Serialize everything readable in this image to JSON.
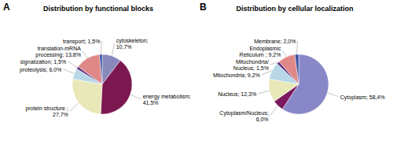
{
  "chart_data": [
    {
      "type": "pie",
      "title": "Distribution by functional blocks",
      "annotations": [
        "A"
      ],
      "categories": [
        "cytoskeleton;\n10,7%",
        "energy metabolism;\n41,5%",
        "protein structure ;\n27,7%",
        "proteolysis; 6,0%",
        "signalization; 1,5%",
        "translation-mRNA\nprocessing; 13,8%",
        "transport; 1,5%"
      ],
      "values": [
        10.7,
        41.5,
        27.7,
        6.0,
        1.5,
        13.8,
        1.5
      ],
      "colors": [
        "#8888bb",
        "#7b1850",
        "#e8e8b8",
        "#b8d8e8",
        "#5c3080",
        "#e08888",
        "#3850a0"
      ]
    },
    {
      "type": "pie",
      "title": "Distribution by cellular localization",
      "annotations": [
        "B"
      ],
      "categories": [
        "Cytoplasm; 58,4%",
        "Cytoplasm/Nucleus;\n6,0%",
        "Nucleus; 12,3%",
        "Mitochondria; 9,2%",
        "Mitochondria/\nNucleus; 1,5%",
        "Endoplasmic\nReticulum ; 9,2%",
        "Membrane; 2,0%"
      ],
      "values": [
        58.4,
        6.0,
        12.3,
        9.2,
        1.5,
        9.2,
        2.0
      ],
      "colors": [
        "#8888c8",
        "#7b1860",
        "#e8e8b8",
        "#b8d8e8",
        "#5c3080",
        "#e08888",
        "#3850a0"
      ]
    }
  ]
}
